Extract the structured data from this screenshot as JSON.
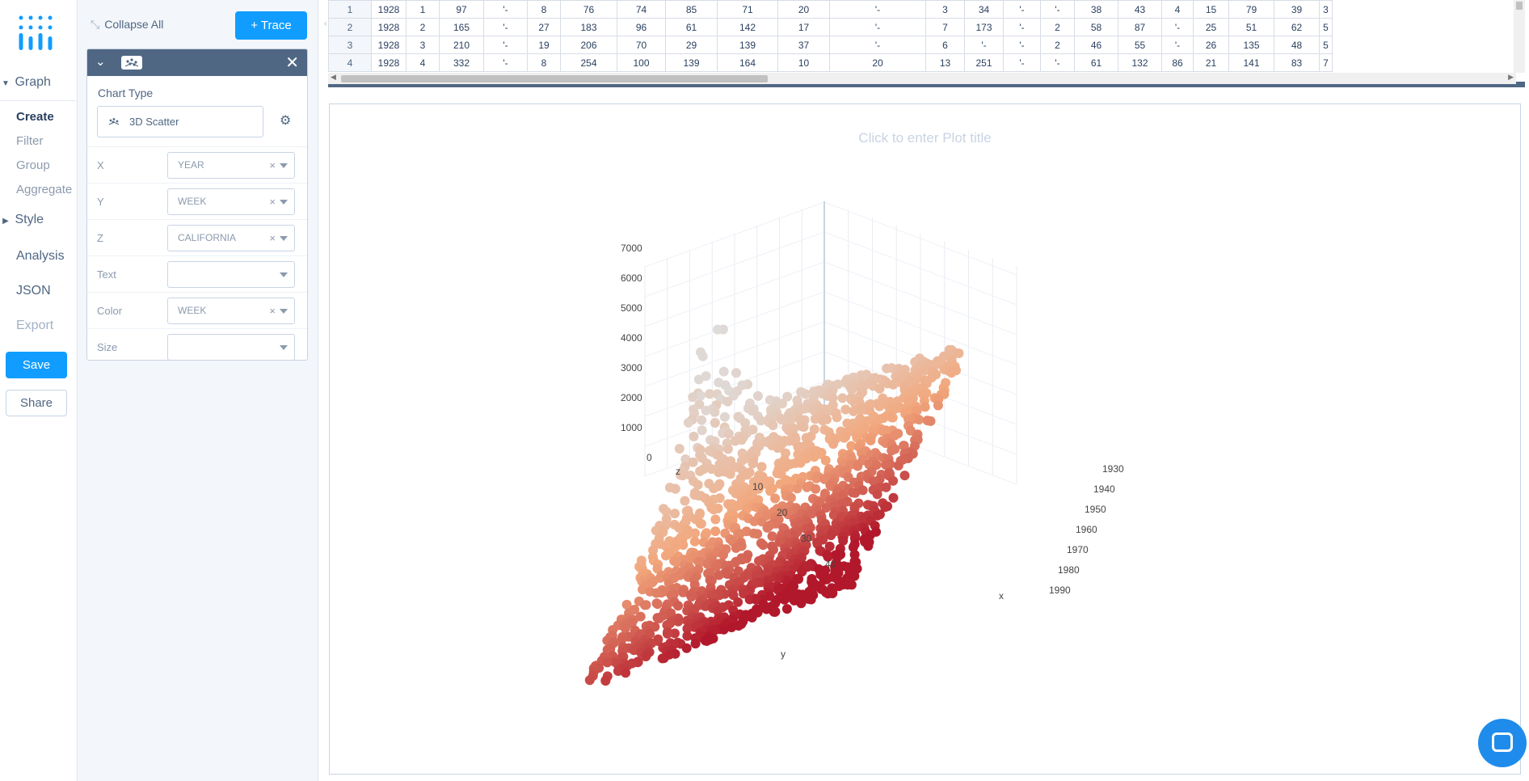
{
  "nav": {
    "sections": [
      {
        "label": "Graph",
        "expanded": true
      },
      {
        "label": "Style",
        "expanded": false
      }
    ],
    "graph_items": [
      {
        "label": "Create",
        "active": true
      },
      {
        "label": "Filter",
        "active": false
      },
      {
        "label": "Group",
        "active": false
      },
      {
        "label": "Aggregate",
        "active": false
      }
    ],
    "analysis": "Analysis",
    "json": "JSON",
    "export": "Export",
    "save": "Save",
    "share": "Share"
  },
  "panel": {
    "collapse_all": "Collapse All",
    "add_trace": "+ Trace",
    "chart_type_label": "Chart Type",
    "chart_type_value": "3D Scatter",
    "fields": [
      {
        "label": "X",
        "value": "YEAR",
        "clearable": true
      },
      {
        "label": "Y",
        "value": "WEEK",
        "clearable": true
      },
      {
        "label": "Z",
        "value": "CALIFORNIA",
        "clearable": true
      },
      {
        "label": "Text",
        "value": "",
        "clearable": false
      },
      {
        "label": "Color",
        "value": "WEEK",
        "clearable": true
      },
      {
        "label": "Size",
        "value": "",
        "clearable": false
      }
    ]
  },
  "grid": {
    "rows": [
      [
        "1",
        "1928",
        "1",
        "97",
        "'-",
        "8",
        "76",
        "74",
        "85",
        "71",
        "20",
        "'-",
        "3",
        "34",
        "'-",
        "'-",
        "38",
        "43",
        "4",
        "15",
        "79",
        "39",
        "3"
      ],
      [
        "2",
        "1928",
        "2",
        "165",
        "'-",
        "27",
        "183",
        "96",
        "61",
        "142",
        "17",
        "'-",
        "7",
        "173",
        "'-",
        "2",
        "58",
        "87",
        "'-",
        "25",
        "51",
        "62",
        "5"
      ],
      [
        "3",
        "1928",
        "3",
        "210",
        "'-",
        "19",
        "206",
        "70",
        "29",
        "139",
        "37",
        "'-",
        "6",
        "'-",
        "'-",
        "2",
        "46",
        "55",
        "'-",
        "26",
        "135",
        "48",
        "5"
      ],
      [
        "4",
        "1928",
        "4",
        "332",
        "'-",
        "8",
        "254",
        "100",
        "139",
        "164",
        "10",
        "20",
        "13",
        "251",
        "'-",
        "'-",
        "61",
        "132",
        "86",
        "21",
        "141",
        "83",
        "7"
      ]
    ]
  },
  "plot": {
    "title_placeholder": "Click to enter Plot title"
  },
  "chart_data": {
    "type": "scatter",
    "subtype": "scatter3d",
    "x_field": "YEAR",
    "y_field": "WEEK",
    "z_field": "CALIFORNIA",
    "color_field": "WEEK",
    "xlabel": "x",
    "ylabel": "y",
    "zlabel": "z",
    "xlim": [
      1928,
      1998
    ],
    "ylim": [
      1,
      52
    ],
    "zlim": [
      0,
      7000
    ],
    "x_ticks": [
      1930,
      1940,
      1950,
      1960,
      1970,
      1980,
      1990
    ],
    "y_ticks": [
      10,
      20,
      30,
      40
    ],
    "z_ticks": [
      0,
      1000,
      2000,
      3000,
      4000,
      5000,
      6000,
      7000
    ],
    "colorscale": [
      "#dddddd",
      "#f2a77c",
      "#b2182b"
    ]
  },
  "colors": {
    "accent": "#119dff",
    "panel_header": "#506784",
    "text": "#506784"
  }
}
